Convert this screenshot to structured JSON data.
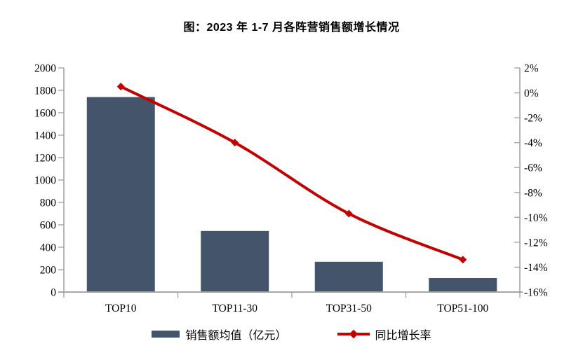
{
  "title": "图：2023 年 1-7 月各阵营销售额增长情况",
  "chart_data": {
    "type": "bar+line",
    "title": "图：2023 年 1-7 月各阵营销售额增长情况",
    "categories": [
      "TOP10",
      "TOP11-30",
      "TOP31-50",
      "TOP51-100"
    ],
    "series": [
      {
        "name": "销售额均值（亿元）",
        "type": "bar",
        "axis": "left",
        "color": "#44546A",
        "values": [
          1740,
          545,
          270,
          125
        ]
      },
      {
        "name": "同比增长率",
        "type": "line",
        "axis": "right",
        "color": "#C00000",
        "marker": "diamond",
        "values": [
          0.5,
          -4.0,
          -9.7,
          -13.4
        ]
      }
    ],
    "left_axis": {
      "min": 0,
      "max": 2000,
      "step": 200,
      "ticks": [
        "0",
        "200",
        "400",
        "600",
        "800",
        "1000",
        "1200",
        "1400",
        "1600",
        "1800",
        "2000"
      ]
    },
    "right_axis": {
      "min": -16,
      "max": 2,
      "step": 2,
      "suffix": "%",
      "ticks": [
        "2%",
        "0%",
        "-2%",
        "-4%",
        "-6%",
        "-8%",
        "-10%",
        "-12%",
        "-14%",
        "-16%"
      ]
    },
    "grid": false,
    "legend_position": "bottom",
    "axis_color": "#A6A6A6",
    "text_color": "#000000",
    "background": "#FFFFFF"
  },
  "legend": {
    "items": [
      {
        "label": "销售额均值（亿元）",
        "swatch": "bar-swatch"
      },
      {
        "label": "同比增长率",
        "swatch": "line-diamond-swatch"
      }
    ]
  }
}
